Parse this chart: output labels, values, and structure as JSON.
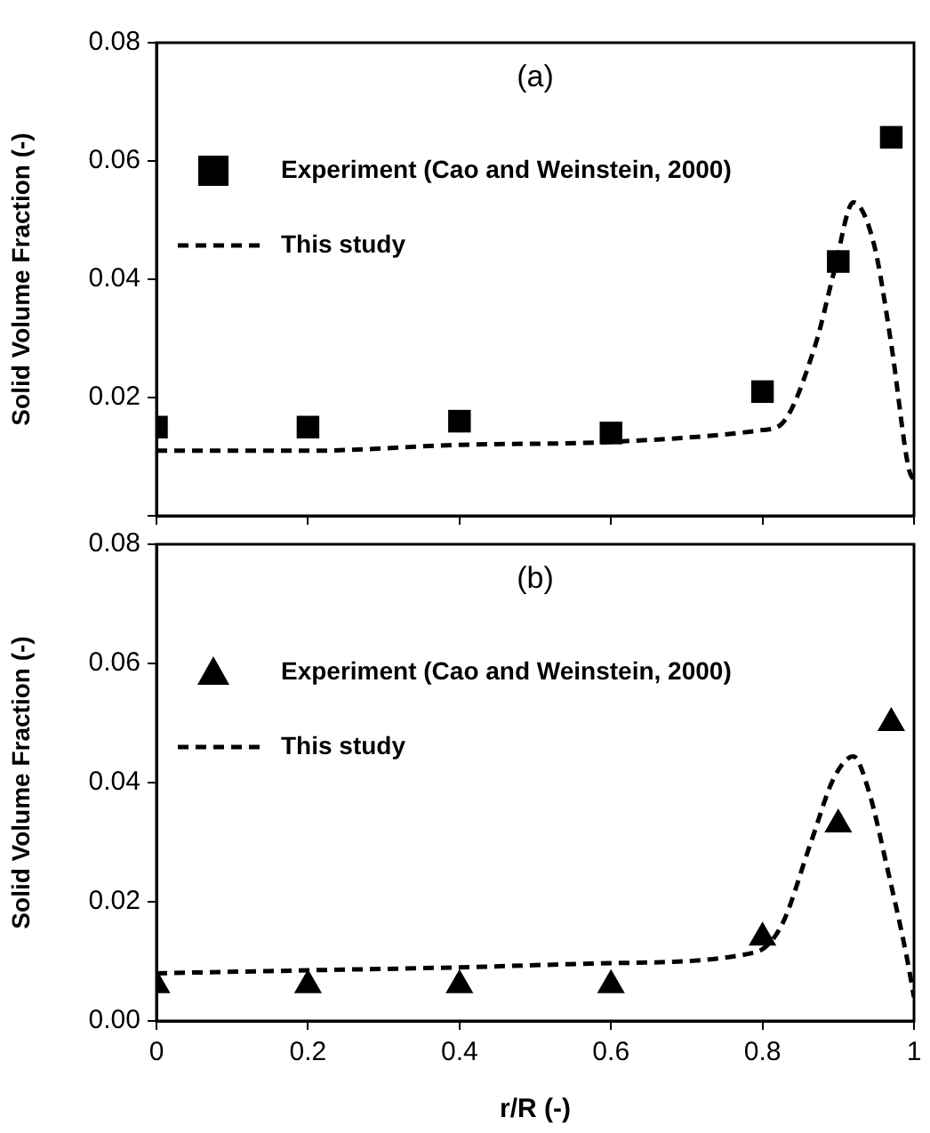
{
  "chart_data": [
    {
      "type": "scatter",
      "title": "(a)",
      "ylabel": "Solid Volume Fraction (-)",
      "xlim": [
        0,
        1
      ],
      "xticks": [
        0,
        0.2,
        0.4,
        0.6,
        0.8,
        1
      ],
      "ylim": [
        0,
        0.08
      ],
      "yticks": [
        {
          "value": 0,
          "label": null
        },
        0.02,
        0.04,
        0.06,
        0.08
      ],
      "grid": false,
      "legend": "top left",
      "tick_labels": "y",
      "series": [
        {
          "name": "Experiment (Cao and Weinstein, 2000)",
          "marker": "square",
          "color": "#000000",
          "x": [
            0,
            0.2,
            0.4,
            0.6,
            0.8,
            0.9,
            0.97
          ],
          "values": [
            0.015,
            0.015,
            0.016,
            0.014,
            0.021,
            0.043,
            0.064
          ]
        },
        {
          "name": "This study",
          "type": "line",
          "marker": "none",
          "line_style": "dashed",
          "color": "#000000",
          "x": [
            0,
            0.2,
            0.4,
            0.6,
            0.8,
            0.825,
            0.87,
            0.894,
            0.92,
            0.947,
            0.97,
            0.993,
            1
          ],
          "values": [
            0.011,
            0.011,
            0.012,
            0.0125,
            0.0145,
            0.0155,
            0.029,
            0.041,
            0.053,
            0.046,
            0.029,
            0.008,
            0.006
          ]
        }
      ]
    },
    {
      "type": "scatter",
      "title": "(b)",
      "xlabel": "r/R (-)",
      "ylabel": "Solid Volume Fraction (-)",
      "xlim": [
        0,
        1
      ],
      "xticks": [
        0,
        0.2,
        0.4,
        0.6,
        0.8,
        1
      ],
      "ylim": [
        0,
        0.08
      ],
      "yticks": [
        {
          "value": 0,
          "label": "0.00"
        },
        0.02,
        0.04,
        0.06,
        0.08
      ],
      "grid": false,
      "legend": "top left",
      "series": [
        {
          "name": "Experiment (Cao and Weinstein, 2000)",
          "marker": "triangle",
          "color": "#000000",
          "x": [
            0,
            0.2,
            0.4,
            0.6,
            0.8,
            0.9,
            0.97
          ],
          "values": [
            0.006,
            0.006,
            0.006,
            0.006,
            0.014,
            0.033,
            0.05
          ]
        },
        {
          "name": "This study",
          "type": "line",
          "marker": "none",
          "line_style": "dashed",
          "color": "#000000",
          "x": [
            0,
            0.2,
            0.4,
            0.6,
            0.79,
            0.825,
            0.864,
            0.894,
            0.92,
            0.94,
            0.965,
            0.99,
            1
          ],
          "values": [
            0.008,
            0.0085,
            0.009,
            0.0097,
            0.0115,
            0.016,
            0.03,
            0.0407,
            0.0444,
            0.0387,
            0.0255,
            0.011,
            0.004
          ]
        }
      ]
    }
  ]
}
